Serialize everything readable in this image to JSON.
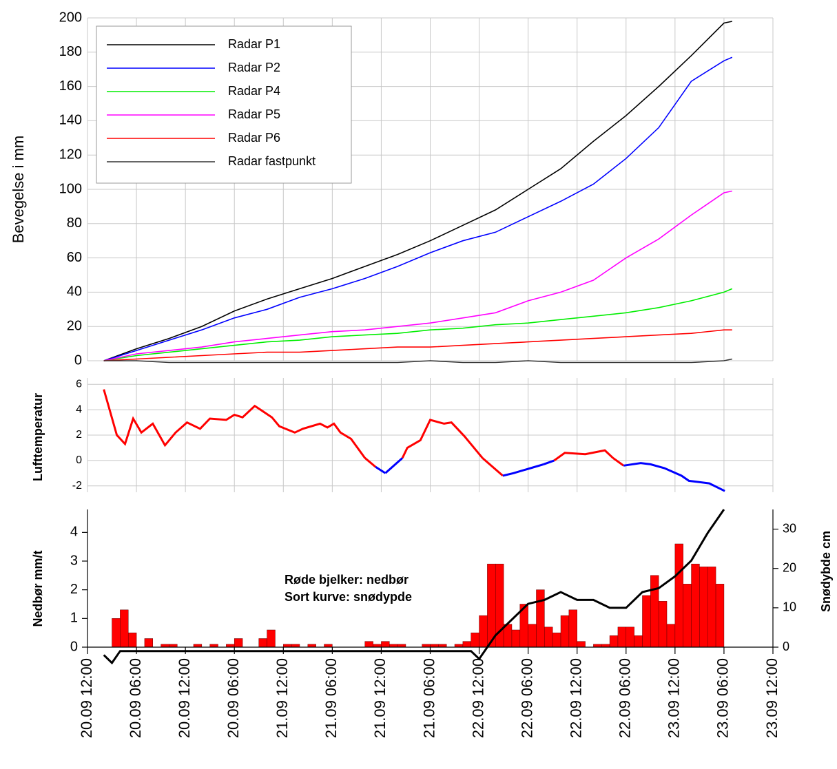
{
  "chart_data": [
    {
      "type": "line",
      "y_label": "Bevegelse i mm",
      "xlim": [
        0,
        84
      ],
      "ylim": [
        0,
        200
      ],
      "yticks": [
        0,
        20,
        40,
        60,
        80,
        100,
        120,
        140,
        160,
        180,
        200
      ],
      "grid": true,
      "legend": "upper left",
      "x": [
        2,
        6,
        10,
        14,
        18,
        22,
        26,
        30,
        34,
        38,
        42,
        46,
        50,
        54,
        58,
        62,
        66,
        70,
        74,
        78,
        79
      ],
      "series": [
        {
          "name": "Radar P1",
          "color": "#000000",
          "values": [
            0,
            7,
            13,
            20,
            29,
            36,
            42,
            48,
            55,
            62,
            70,
            79,
            88,
            100,
            112,
            128,
            143,
            160,
            178,
            197,
            198
          ]
        },
        {
          "name": "Radar P2",
          "color": "#0000ff",
          "values": [
            0,
            6,
            12,
            18,
            25,
            30,
            37,
            42,
            48,
            55,
            63,
            70,
            75,
            84,
            93,
            103,
            118,
            136,
            163,
            175,
            177
          ]
        },
        {
          "name": "Radar P4",
          "color": "#00ee00",
          "values": [
            0,
            3,
            5,
            7,
            9,
            11,
            12,
            14,
            15,
            16,
            18,
            19,
            21,
            22,
            24,
            26,
            28,
            31,
            35,
            40,
            42
          ]
        },
        {
          "name": "Radar P5",
          "color": "#ff00ff",
          "values": [
            0,
            4,
            6,
            8,
            11,
            13,
            15,
            17,
            18,
            20,
            22,
            25,
            28,
            35,
            40,
            47,
            60,
            71,
            85,
            98,
            99
          ]
        },
        {
          "name": "Radar P6",
          "color": "#ff0000",
          "values": [
            0,
            1,
            2,
            3,
            4,
            5,
            5,
            6,
            7,
            8,
            8,
            9,
            10,
            11,
            12,
            13,
            14,
            15,
            16,
            18,
            18
          ]
        },
        {
          "name": "Radar fastpunkt",
          "color": "#333333",
          "values": [
            0,
            0,
            -1,
            -1,
            -1,
            -1,
            -1,
            -1,
            -1,
            -1,
            0,
            -1,
            -1,
            0,
            -1,
            -1,
            -1,
            -1,
            -1,
            0,
            1
          ]
        }
      ]
    },
    {
      "type": "line",
      "y_label": "Lufttemperatur",
      "xlim": [
        0,
        84
      ],
      "ylim": [
        -2.5,
        6.5
      ],
      "yticks": [
        -2,
        0,
        2,
        4,
        6
      ],
      "grid": true,
      "above_zero_color": "#ff0000",
      "below_zero_color": "#0000ff",
      "x": [
        2,
        3.6,
        4.6,
        5.6,
        6.6,
        8,
        9.5,
        10.8,
        12.2,
        13.8,
        15,
        17,
        18,
        19,
        20.5,
        22.6,
        23.5,
        25.4,
        26.4,
        28.5,
        29.4,
        30.2,
        31,
        32.3,
        34,
        35.3,
        36.5,
        38.6,
        39.2,
        40.8,
        42,
        43.7,
        44.6,
        46.2,
        48.4,
        50.9,
        52.2,
        54.3,
        55.9,
        57.2,
        58.5,
        61,
        63.4,
        64.4,
        65.7,
        67.8,
        69,
        70.7,
        72.8,
        73.7,
        76.2,
        78.1
      ],
      "values": [
        5.6,
        2.0,
        1.3,
        3.3,
        2.2,
        2.9,
        1.2,
        2.2,
        3.0,
        2.5,
        3.3,
        3.2,
        3.6,
        3.4,
        4.3,
        3.4,
        2.7,
        2.2,
        2.5,
        2.9,
        2.6,
        2.9,
        2.2,
        1.7,
        0.2,
        -0.5,
        -1.0,
        0.2,
        1.0,
        1.6,
        3.2,
        2.9,
        3.0,
        1.9,
        0.2,
        -1.2,
        -1.0,
        -0.6,
        -0.3,
        0.0,
        0.6,
        0.5,
        0.8,
        0.2,
        -0.4,
        -0.2,
        -0.3,
        -0.6,
        -1.2,
        -1.6,
        -1.8,
        -2.4
      ]
    },
    {
      "type": "bar",
      "y_label": "Nedbør mm/t",
      "y2_label": "Snødybde cm",
      "annotations": [
        "Røde bjelker: nedbør",
        "Sort kurve: snødypde"
      ],
      "xlim": [
        0,
        84
      ],
      "ylim": [
        0,
        4.8
      ],
      "yticks": [
        0,
        1,
        2,
        3,
        4
      ],
      "y2lim": [
        0,
        35
      ],
      "y2ticks": [
        0,
        10,
        20,
        30
      ],
      "xticks": [
        {
          "value": 0,
          "label": "20.09 12:00"
        },
        {
          "value": 6,
          "label": "20.09 06:00"
        },
        {
          "value": 12,
          "label": "20.09 12:00"
        },
        {
          "value": 18,
          "label": "20.09 06:00"
        },
        {
          "value": 24,
          "label": "21.09 12:00"
        },
        {
          "value": 30,
          "label": "21.09 06:00"
        },
        {
          "value": 36,
          "label": "21.09 12:00"
        },
        {
          "value": 42,
          "label": "21.09 06:00"
        },
        {
          "value": 48,
          "label": "22.09 12:00"
        },
        {
          "value": 54,
          "label": "22.09 06:00"
        },
        {
          "value": 60,
          "label": "22.09 12:00"
        },
        {
          "value": 66,
          "label": "22.09 06:00"
        },
        {
          "value": 72,
          "label": "23.09 12:00"
        },
        {
          "value": 78,
          "label": "23.09 06:00"
        },
        {
          "value": 84,
          "label": "23.09 12:00"
        }
      ],
      "bars": {
        "color": "#ff0000",
        "x": [
          2,
          3,
          4,
          5,
          6,
          7,
          8,
          9,
          10,
          11,
          12,
          13,
          14,
          15,
          16,
          17,
          18,
          19,
          20,
          21,
          22,
          23,
          24,
          25,
          26,
          27,
          28,
          29,
          30,
          31,
          32,
          33,
          34,
          35,
          36,
          37,
          38,
          39,
          40,
          41,
          42,
          43,
          44,
          45,
          46,
          47,
          48,
          49,
          50,
          51,
          52,
          53,
          54,
          55,
          56,
          57,
          58,
          59,
          60,
          61,
          62,
          63,
          64,
          65,
          66,
          67,
          68,
          69,
          70,
          71,
          72,
          73,
          74,
          75,
          76,
          77
        ],
        "values": [
          0,
          1.0,
          1.3,
          0.5,
          0,
          0.3,
          0,
          0.1,
          0.1,
          0,
          0,
          0.1,
          0,
          0.1,
          0,
          0.1,
          0.3,
          0,
          0,
          0.3,
          0.6,
          0,
          0.1,
          0.1,
          0,
          0.1,
          0,
          0.1,
          0,
          0,
          0,
          0,
          0.2,
          0.1,
          0.2,
          0.1,
          0.1,
          0,
          0,
          0.1,
          0.1,
          0.1,
          0,
          0.1,
          0.2,
          0.5,
          1.1,
          2.9,
          2.9,
          0.8,
          0.6,
          1.5,
          0.8,
          2.0,
          0.7,
          0.5,
          1.1,
          1.3,
          0.2,
          0,
          0.1,
          0.1,
          0.4,
          0.7,
          0.7,
          0.4,
          1.8,
          2.5,
          1.6,
          0.8,
          3.6,
          2.2,
          2.9,
          2.8,
          2.8,
          2.2
        ]
      },
      "snow": {
        "color": "#000000",
        "axis": "y2",
        "x": [
          2,
          3,
          4,
          6,
          8,
          10,
          12,
          14,
          16,
          18,
          20,
          22,
          24,
          26,
          28,
          30,
          32,
          34,
          36,
          38,
          40,
          42,
          44,
          46,
          47,
          48,
          49,
          50,
          52,
          54,
          56,
          58,
          60,
          62,
          64,
          66,
          68,
          70,
          72,
          74,
          76,
          78
        ],
        "values": [
          -2,
          -4,
          -1,
          -1,
          -1,
          -1,
          -1,
          -1,
          -1,
          -1,
          -1,
          -1,
          -1,
          -1,
          -1,
          -1,
          -1,
          -1,
          -1,
          -1,
          -1,
          -1,
          -1,
          -1,
          -1,
          -3,
          0,
          3,
          7,
          11,
          12,
          14,
          12,
          12,
          10,
          10,
          14,
          15,
          18,
          22,
          29,
          35
        ]
      }
    }
  ]
}
